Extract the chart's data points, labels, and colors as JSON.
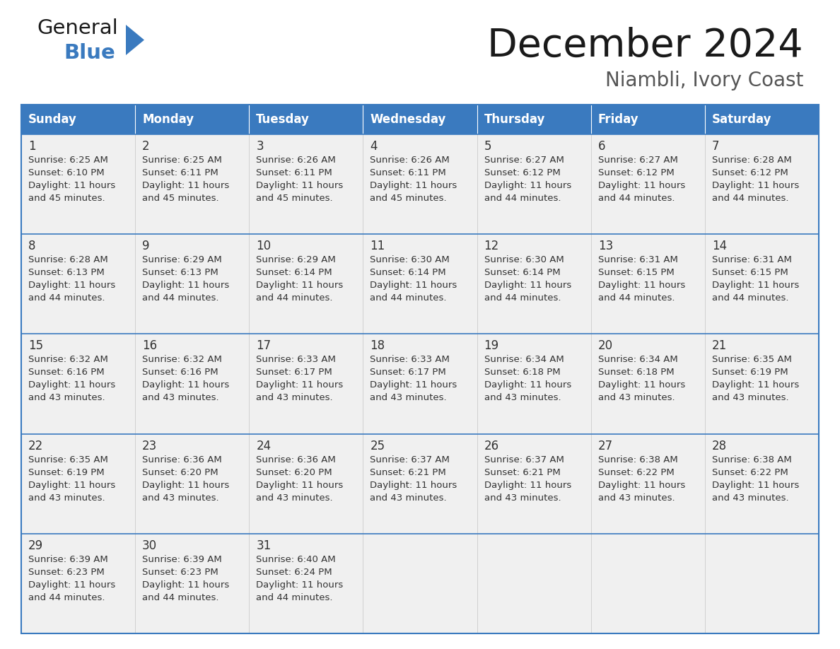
{
  "title": "December 2024",
  "subtitle": "Niambli, Ivory Coast",
  "header_color": "#3a7abf",
  "header_text_color": "#ffffff",
  "cell_bg_color": "#f0f0f0",
  "border_color": "#3a7abf",
  "text_color": "#333333",
  "days_of_week": [
    "Sunday",
    "Monday",
    "Tuesday",
    "Wednesday",
    "Thursday",
    "Friday",
    "Saturday"
  ],
  "calendar_data": [
    [
      {
        "day": "1",
        "sunrise": "6:25 AM",
        "sunset": "6:10 PM",
        "dl1": "Daylight: 11 hours",
        "dl2": "and 45 minutes."
      },
      {
        "day": "2",
        "sunrise": "6:25 AM",
        "sunset": "6:11 PM",
        "dl1": "Daylight: 11 hours",
        "dl2": "and 45 minutes."
      },
      {
        "day": "3",
        "sunrise": "6:26 AM",
        "sunset": "6:11 PM",
        "dl1": "Daylight: 11 hours",
        "dl2": "and 45 minutes."
      },
      {
        "day": "4",
        "sunrise": "6:26 AM",
        "sunset": "6:11 PM",
        "dl1": "Daylight: 11 hours",
        "dl2": "and 45 minutes."
      },
      {
        "day": "5",
        "sunrise": "6:27 AM",
        "sunset": "6:12 PM",
        "dl1": "Daylight: 11 hours",
        "dl2": "and 44 minutes."
      },
      {
        "day": "6",
        "sunrise": "6:27 AM",
        "sunset": "6:12 PM",
        "dl1": "Daylight: 11 hours",
        "dl2": "and 44 minutes."
      },
      {
        "day": "7",
        "sunrise": "6:28 AM",
        "sunset": "6:12 PM",
        "dl1": "Daylight: 11 hours",
        "dl2": "and 44 minutes."
      }
    ],
    [
      {
        "day": "8",
        "sunrise": "6:28 AM",
        "sunset": "6:13 PM",
        "dl1": "Daylight: 11 hours",
        "dl2": "and 44 minutes."
      },
      {
        "day": "9",
        "sunrise": "6:29 AM",
        "sunset": "6:13 PM",
        "dl1": "Daylight: 11 hours",
        "dl2": "and 44 minutes."
      },
      {
        "day": "10",
        "sunrise": "6:29 AM",
        "sunset": "6:14 PM",
        "dl1": "Daylight: 11 hours",
        "dl2": "and 44 minutes."
      },
      {
        "day": "11",
        "sunrise": "6:30 AM",
        "sunset": "6:14 PM",
        "dl1": "Daylight: 11 hours",
        "dl2": "and 44 minutes."
      },
      {
        "day": "12",
        "sunrise": "6:30 AM",
        "sunset": "6:14 PM",
        "dl1": "Daylight: 11 hours",
        "dl2": "and 44 minutes."
      },
      {
        "day": "13",
        "sunrise": "6:31 AM",
        "sunset": "6:15 PM",
        "dl1": "Daylight: 11 hours",
        "dl2": "and 44 minutes."
      },
      {
        "day": "14",
        "sunrise": "6:31 AM",
        "sunset": "6:15 PM",
        "dl1": "Daylight: 11 hours",
        "dl2": "and 44 minutes."
      }
    ],
    [
      {
        "day": "15",
        "sunrise": "6:32 AM",
        "sunset": "6:16 PM",
        "dl1": "Daylight: 11 hours",
        "dl2": "and 43 minutes."
      },
      {
        "day": "16",
        "sunrise": "6:32 AM",
        "sunset": "6:16 PM",
        "dl1": "Daylight: 11 hours",
        "dl2": "and 43 minutes."
      },
      {
        "day": "17",
        "sunrise": "6:33 AM",
        "sunset": "6:17 PM",
        "dl1": "Daylight: 11 hours",
        "dl2": "and 43 minutes."
      },
      {
        "day": "18",
        "sunrise": "6:33 AM",
        "sunset": "6:17 PM",
        "dl1": "Daylight: 11 hours",
        "dl2": "and 43 minutes."
      },
      {
        "day": "19",
        "sunrise": "6:34 AM",
        "sunset": "6:18 PM",
        "dl1": "Daylight: 11 hours",
        "dl2": "and 43 minutes."
      },
      {
        "day": "20",
        "sunrise": "6:34 AM",
        "sunset": "6:18 PM",
        "dl1": "Daylight: 11 hours",
        "dl2": "and 43 minutes."
      },
      {
        "day": "21",
        "sunrise": "6:35 AM",
        "sunset": "6:19 PM",
        "dl1": "Daylight: 11 hours",
        "dl2": "and 43 minutes."
      }
    ],
    [
      {
        "day": "22",
        "sunrise": "6:35 AM",
        "sunset": "6:19 PM",
        "dl1": "Daylight: 11 hours",
        "dl2": "and 43 minutes."
      },
      {
        "day": "23",
        "sunrise": "6:36 AM",
        "sunset": "6:20 PM",
        "dl1": "Daylight: 11 hours",
        "dl2": "and 43 minutes."
      },
      {
        "day": "24",
        "sunrise": "6:36 AM",
        "sunset": "6:20 PM",
        "dl1": "Daylight: 11 hours",
        "dl2": "and 43 minutes."
      },
      {
        "day": "25",
        "sunrise": "6:37 AM",
        "sunset": "6:21 PM",
        "dl1": "Daylight: 11 hours",
        "dl2": "and 43 minutes."
      },
      {
        "day": "26",
        "sunrise": "6:37 AM",
        "sunset": "6:21 PM",
        "dl1": "Daylight: 11 hours",
        "dl2": "and 43 minutes."
      },
      {
        "day": "27",
        "sunrise": "6:38 AM",
        "sunset": "6:22 PM",
        "dl1": "Daylight: 11 hours",
        "dl2": "and 43 minutes."
      },
      {
        "day": "28",
        "sunrise": "6:38 AM",
        "sunset": "6:22 PM",
        "dl1": "Daylight: 11 hours",
        "dl2": "and 43 minutes."
      }
    ],
    [
      {
        "day": "29",
        "sunrise": "6:39 AM",
        "sunset": "6:23 PM",
        "dl1": "Daylight: 11 hours",
        "dl2": "and 44 minutes."
      },
      {
        "day": "30",
        "sunrise": "6:39 AM",
        "sunset": "6:23 PM",
        "dl1": "Daylight: 11 hours",
        "dl2": "and 44 minutes."
      },
      {
        "day": "31",
        "sunrise": "6:40 AM",
        "sunset": "6:24 PM",
        "dl1": "Daylight: 11 hours",
        "dl2": "and 44 minutes."
      },
      null,
      null,
      null,
      null
    ]
  ],
  "logo_triangle_color": "#3a7abf",
  "fig_width": 11.88,
  "fig_height": 9.18,
  "dpi": 100
}
